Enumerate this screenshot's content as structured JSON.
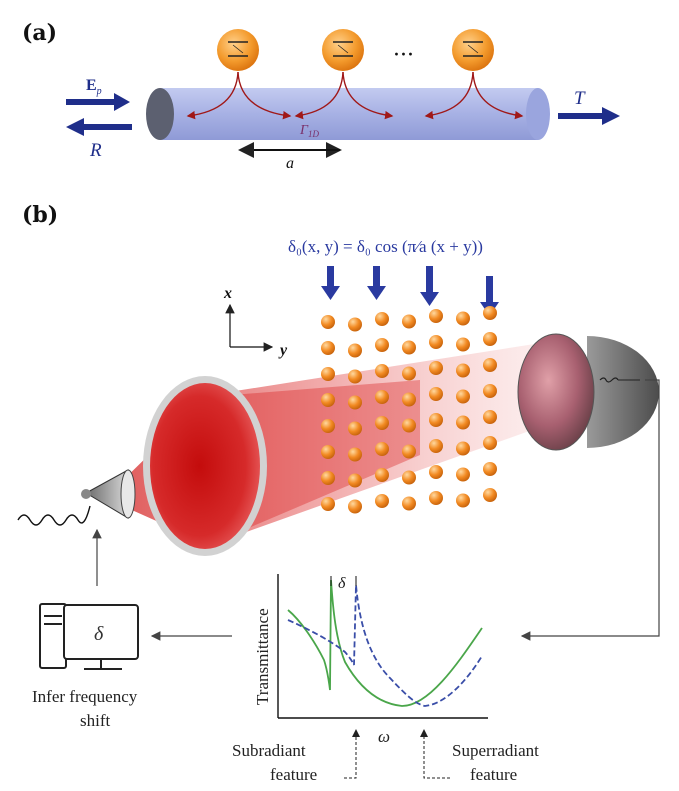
{
  "panel_a": {
    "label": "(a)",
    "probe_field": "E",
    "probe_field_sub": "p",
    "reflection": "R",
    "transmission": "T",
    "coupling": "Γ",
    "coupling_sub": "1D",
    "ellipsis": "···",
    "spacing": "a",
    "atom_count": 3
  },
  "panel_b": {
    "label": "(b)",
    "modulation_equation": "δ₀(x, y) = δ₀ cos (π⁄a (x + y))",
    "axis_x": "x",
    "axis_y": "y",
    "grid_columns": 7,
    "grid_rows": 8,
    "plot": {
      "ylabel": "Transmittance",
      "xlabel": "ω",
      "shift_label": "δ",
      "subradiant_label_line1": "Subradiant",
      "subradiant_label_line2": "feature",
      "superradiant_label_line1": "Superradiant",
      "superradiant_label_line2": "feature"
    },
    "computer_display": "δ",
    "infer_label_line1": "Infer frequency",
    "infer_label_line2": "shift"
  },
  "colors": {
    "arrow_blue": "#1f2e8a",
    "waveguide": "#aab4e6",
    "atom_orange": "#f08a1c",
    "laser_red": "#d81818",
    "curve_green": "#4aa64a",
    "curve_blue": "#3a4ea8"
  }
}
